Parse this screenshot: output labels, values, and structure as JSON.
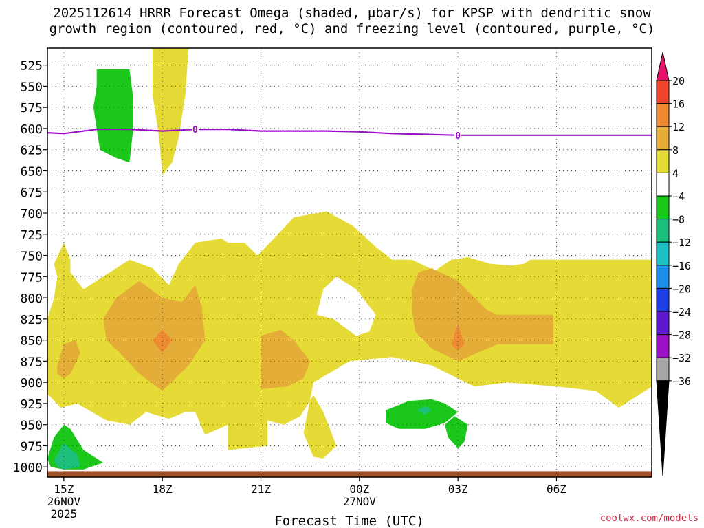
{
  "title": {
    "line1": "2025112614 HRRR Forecast Omega (shaded, μbar/s) for KPSP with dendritic snow",
    "line2": "growth region (contoured, red, °C) and freezing level (contoured, purple, °C)"
  },
  "credit": "coolwx.com/models",
  "chart_data": {
    "type": "heatmap",
    "title": "2025112614 HRRR Forecast Omega (shaded, μbar/s) for KPSP with dendritic snow growth region (contoured, red, °C) and freezing level (contoured, purple, °C)",
    "xlabel": "Forecast Time (UTC)",
    "ylabel": "",
    "x_unit": "hours after 2025-11-26 15Z",
    "xlim": [
      -0.5,
      17.9
    ],
    "y_unit": "mb",
    "ylim": [
      1012,
      505
    ],
    "y_ticks": [
      525,
      550,
      575,
      600,
      625,
      650,
      675,
      700,
      725,
      750,
      775,
      800,
      825,
      850,
      875,
      900,
      925,
      950,
      975,
      1000
    ],
    "x_ticks": [
      {
        "x": 0,
        "line1": "15Z",
        "line2": "26NOV",
        "line3": "2025"
      },
      {
        "x": 3,
        "line1": "18Z",
        "line2": "",
        "line3": ""
      },
      {
        "x": 6,
        "line1": "21Z",
        "line2": "",
        "line3": ""
      },
      {
        "x": 9,
        "line1": "00Z",
        "line2": "27NOV",
        "line3": ""
      },
      {
        "x": 12,
        "line1": "03Z",
        "line2": "",
        "line3": ""
      },
      {
        "x": 15,
        "line1": "06Z",
        "line2": "",
        "line3": ""
      }
    ],
    "grid": true,
    "colorbar": {
      "labels": [
        "20",
        "16",
        "12",
        "8",
        "4",
        "−4",
        "−8",
        "−12",
        "−16",
        "−20",
        "−24",
        "−28",
        "−32",
        "−36"
      ],
      "bands": [
        {
          "from": 20,
          "to": 24,
          "color": "#e8116b"
        },
        {
          "from": 16,
          "to": 20,
          "color": "#f0432c"
        },
        {
          "from": 12,
          "to": 16,
          "color": "#ed8930"
        },
        {
          "from": 8,
          "to": 12,
          "color": "#e3ad38"
        },
        {
          "from": 4,
          "to": 8,
          "color": "#e5da36"
        },
        {
          "from": -4,
          "to": 4,
          "color": "#ffffff"
        },
        {
          "from": -8,
          "to": -4,
          "color": "#1cc71c"
        },
        {
          "from": -12,
          "to": -8,
          "color": "#1dbf7c"
        },
        {
          "from": -16,
          "to": -12,
          "color": "#1ec0c4"
        },
        {
          "from": -20,
          "to": -16,
          "color": "#1a8ee8"
        },
        {
          "from": -24,
          "to": -20,
          "color": "#1c3ee4"
        },
        {
          "from": -28,
          "to": -24,
          "color": "#5b18cc"
        },
        {
          "from": -32,
          "to": -28,
          "color": "#9a10c4"
        },
        {
          "from": -36,
          "to": -32,
          "color": "#a6a6a6"
        },
        {
          "from": -40,
          "to": -36,
          "color": "#000000"
        }
      ]
    },
    "regions": [
      {
        "name": "omega-4-8-main",
        "level": "4 to 8",
        "color": "#e5da36",
        "points": [
          [
            -0.1,
            930
          ],
          [
            -0.7,
            905
          ],
          [
            -0.7,
            880
          ],
          [
            -0.6,
            850
          ],
          [
            -0.5,
            825
          ],
          [
            -0.3,
            800
          ],
          [
            -0.2,
            775
          ],
          [
            -0.3,
            760
          ],
          [
            0,
            735
          ],
          [
            0.2,
            755
          ],
          [
            0.2,
            770
          ],
          [
            0.6,
            790
          ],
          [
            1.2,
            775
          ],
          [
            2.0,
            755
          ],
          [
            2.7,
            765
          ],
          [
            3.2,
            785
          ],
          [
            3.5,
            760
          ],
          [
            4.0,
            735
          ],
          [
            4.8,
            730
          ],
          [
            5.0,
            735
          ],
          [
            5.5,
            735
          ],
          [
            5.9,
            750
          ],
          [
            6.4,
            730
          ],
          [
            7.0,
            705
          ],
          [
            8.0,
            698
          ],
          [
            8.8,
            715
          ],
          [
            9.5,
            740
          ],
          [
            10.0,
            755
          ],
          [
            10.6,
            755
          ],
          [
            11.3,
            768
          ],
          [
            11.8,
            755
          ],
          [
            12.3,
            752
          ],
          [
            13.0,
            760
          ],
          [
            13.6,
            762
          ],
          [
            14.0,
            760
          ],
          [
            14.2,
            755
          ],
          [
            17.9,
            755
          ],
          [
            17.9,
            905
          ],
          [
            17.3,
            920
          ],
          [
            16.9,
            930
          ],
          [
            16.2,
            910
          ],
          [
            15.0,
            905
          ],
          [
            13.5,
            900
          ],
          [
            12.5,
            905
          ],
          [
            11.2,
            880
          ],
          [
            10.0,
            870
          ],
          [
            8.7,
            875
          ],
          [
            7.6,
            900
          ],
          [
            7.3,
            960
          ],
          [
            7.6,
            988
          ],
          [
            7.9,
            990
          ],
          [
            8.3,
            975
          ],
          [
            7.9,
            935
          ],
          [
            7.6,
            915
          ],
          [
            7.2,
            940
          ],
          [
            6.7,
            950
          ],
          [
            6.2,
            945
          ],
          [
            5.2,
            955
          ],
          [
            5.0,
            950
          ],
          [
            4.3,
            962
          ],
          [
            4.0,
            935
          ],
          [
            3.7,
            935
          ],
          [
            3.2,
            943
          ],
          [
            2.5,
            935
          ],
          [
            2.0,
            950
          ],
          [
            1.3,
            945
          ],
          [
            0.4,
            925
          ]
        ]
      },
      {
        "name": "omega-white-hole-2300z",
        "level": "-4 to 4",
        "color": "#ffffff",
        "points": [
          [
            7.7,
            820
          ],
          [
            7.9,
            790
          ],
          [
            8.3,
            775
          ],
          [
            8.9,
            790
          ],
          [
            9.5,
            820
          ],
          [
            9.3,
            840
          ],
          [
            8.9,
            845
          ],
          [
            8.2,
            825
          ]
        ]
      },
      {
        "name": "omega-4-8-upper",
        "level": "4 to 8",
        "color": "#e5da36",
        "points": [
          [
            2.7,
            505
          ],
          [
            3.1,
            505
          ],
          [
            3.8,
            505
          ],
          [
            3.7,
            560
          ],
          [
            3.5,
            610
          ],
          [
            3.3,
            640
          ],
          [
            3.0,
            655
          ],
          [
            2.9,
            610
          ],
          [
            2.7,
            560
          ]
        ]
      },
      {
        "name": "omega-4-8-lower-strip",
        "level": "4 to 8",
        "color": "#e5da36",
        "points": [
          [
            5.0,
            950
          ],
          [
            6.2,
            945
          ],
          [
            6.2,
            975
          ],
          [
            5.0,
            980
          ]
        ]
      },
      {
        "name": "omega-8-12-1700z",
        "level": "8 to 12",
        "color": "#e3ad38",
        "points": [
          [
            1.2,
            825
          ],
          [
            1.6,
            800
          ],
          [
            2.3,
            780
          ],
          [
            3.0,
            800
          ],
          [
            3.6,
            805
          ],
          [
            4.0,
            785
          ],
          [
            4.2,
            810
          ],
          [
            4.3,
            850
          ],
          [
            3.8,
            880
          ],
          [
            3.0,
            910
          ],
          [
            2.3,
            890
          ],
          [
            1.7,
            865
          ],
          [
            1.3,
            850
          ]
        ]
      },
      {
        "name": "omega-8-12-1500z",
        "level": "8 to 12",
        "color": "#e3ad38",
        "points": [
          [
            -0.2,
            880
          ],
          [
            0,
            855
          ],
          [
            0.35,
            850
          ],
          [
            0.5,
            865
          ],
          [
            0.2,
            890
          ],
          [
            0,
            895
          ],
          [
            -0.2,
            890
          ]
        ]
      },
      {
        "name": "omega-8-12-2100z",
        "level": "8 to 12",
        "color": "#e3ad38",
        "points": [
          [
            6.0,
            845
          ],
          [
            6.6,
            838
          ],
          [
            7.0,
            850
          ],
          [
            7.5,
            875
          ],
          [
            7.3,
            895
          ],
          [
            6.8,
            905
          ],
          [
            6.0,
            908
          ]
        ]
      },
      {
        "name": "omega-8-12-0200z",
        "level": "8 to 12",
        "color": "#e3ad38",
        "points": [
          [
            10.6,
            790
          ],
          [
            10.8,
            770
          ],
          [
            11.2,
            765
          ],
          [
            12.0,
            780
          ],
          [
            12.9,
            815
          ],
          [
            13.2,
            820
          ],
          [
            14.9,
            820
          ],
          [
            14.9,
            855
          ],
          [
            13.2,
            855
          ],
          [
            12.0,
            875
          ],
          [
            11.2,
            860
          ],
          [
            10.7,
            840
          ],
          [
            10.6,
            815
          ]
        ]
      },
      {
        "name": "omega-12-16-1800z",
        "level": "12 to 16",
        "color": "#ed8930",
        "points": [
          [
            3.0,
            838
          ],
          [
            3.3,
            850
          ],
          [
            3.0,
            865
          ],
          [
            2.7,
            850
          ]
        ]
      },
      {
        "name": "omega-12-16-0300z",
        "level": "12 to 16",
        "color": "#ed8930",
        "points": [
          [
            12.0,
            830
          ],
          [
            12.2,
            855
          ],
          [
            12.0,
            862
          ],
          [
            11.8,
            855
          ]
        ]
      },
      {
        "name": "omega-minus4-minus8-upper",
        "level": "-4 to -8",
        "color": "#1cc71c",
        "points": [
          [
            1.0,
            530
          ],
          [
            2.0,
            530
          ],
          [
            2.1,
            560
          ],
          [
            2.1,
            605
          ],
          [
            2.0,
            640
          ],
          [
            1.6,
            635
          ],
          [
            1.1,
            625
          ],
          [
            0.9,
            575
          ],
          [
            1.0,
            550
          ]
        ]
      },
      {
        "name": "omega-minus4-minus8-bottom-left",
        "level": "-4 to -8",
        "color": "#1cc71c",
        "points": [
          [
            -0.5,
            990
          ],
          [
            -0.3,
            965
          ],
          [
            0,
            950
          ],
          [
            0.2,
            955
          ],
          [
            0.6,
            980
          ],
          [
            1.2,
            995
          ],
          [
            0.6,
            1003
          ],
          [
            0,
            1003
          ],
          [
            -0.4,
            1000
          ]
        ]
      },
      {
        "name": "omega-minus4-minus8-0100z",
        "level": "-4 to -8",
        "color": "#1cc71c",
        "points": [
          [
            9.8,
            933
          ],
          [
            10.5,
            922
          ],
          [
            11.2,
            920
          ],
          [
            11.6,
            925
          ],
          [
            12.0,
            935
          ],
          [
            11.6,
            948
          ],
          [
            11.0,
            955
          ],
          [
            10.2,
            955
          ],
          [
            9.8,
            948
          ]
        ]
      },
      {
        "name": "omega-minus4-minus8-0300z",
        "level": "-4 to -8",
        "color": "#1cc71c",
        "points": [
          [
            11.6,
            950
          ],
          [
            11.9,
            940
          ],
          [
            12.3,
            950
          ],
          [
            12.2,
            970
          ],
          [
            12.0,
            978
          ],
          [
            11.7,
            965
          ]
        ]
      },
      {
        "name": "omega-minus8-minus12-bottom-left",
        "level": "-8 to -12",
        "color": "#1dbf7c",
        "points": [
          [
            -0.3,
            992
          ],
          [
            0,
            972
          ],
          [
            0.4,
            985
          ],
          [
            0.5,
            1000
          ],
          [
            0,
            1003
          ],
          [
            -0.2,
            1000
          ]
        ]
      },
      {
        "name": "omega-minus8-minus12-0100z",
        "level": "-8 to -12",
        "color": "#1dbf7c",
        "points": [
          [
            10.75,
            933
          ],
          [
            11.0,
            928
          ],
          [
            11.2,
            933
          ],
          [
            11.0,
            938
          ]
        ]
      }
    ],
    "freezing_level": {
      "name": "freezing level",
      "color": "#9a10c4",
      "x": [
        -0.5,
        0,
        1,
        2,
        3,
        4,
        5,
        6,
        7,
        8,
        9,
        10,
        11,
        12,
        13,
        14,
        15,
        16,
        17,
        17.9
      ],
      "y": [
        605,
        606,
        601,
        601,
        603,
        601,
        601,
        603,
        603,
        603,
        604,
        606,
        607,
        608,
        608,
        608,
        608,
        608,
        608,
        608
      ],
      "contour_label": "0",
      "label_x": [
        4.0,
        12.0
      ]
    },
    "terrain": {
      "color": "#a0522d",
      "surface_mb": 1005
    }
  }
}
